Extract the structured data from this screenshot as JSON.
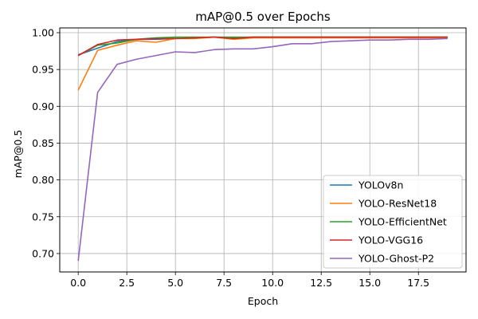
{
  "chart_data": {
    "type": "line",
    "title": "mAP@0.5 over Epochs",
    "xlabel": "Epoch",
    "ylabel": "mAP@0.5",
    "xlim": [
      -0.95,
      19.95
    ],
    "ylim": [
      0.675,
      1.0065
    ],
    "xticks": [
      0.0,
      2.5,
      5.0,
      7.5,
      10.0,
      12.5,
      15.0,
      17.5
    ],
    "xtick_labels": [
      "0.0",
      "2.5",
      "5.0",
      "7.5",
      "10.0",
      "12.5",
      "15.0",
      "17.5"
    ],
    "yticks": [
      0.7,
      0.75,
      0.8,
      0.85,
      0.9,
      0.95,
      1.0
    ],
    "ytick_labels": [
      "0.70",
      "0.75",
      "0.80",
      "0.85",
      "0.90",
      "0.95",
      "1.00"
    ],
    "grid": true,
    "legend_position": "lower-right",
    "x": [
      0,
      1,
      2,
      3,
      4,
      5,
      6,
      7,
      8,
      9,
      10,
      11,
      12,
      13,
      14,
      15,
      16,
      17,
      18,
      19
    ],
    "series": [
      {
        "name": "YOLOv8n",
        "color": "#1f77b4",
        "values": [
          0.97,
          0.979,
          0.988,
          0.991,
          0.991,
          0.992,
          0.993,
          0.994,
          0.993,
          0.994,
          0.994,
          0.994,
          0.994,
          0.994,
          0.994,
          0.994,
          0.994,
          0.994,
          0.994,
          0.994
        ]
      },
      {
        "name": "YOLO-ResNet18",
        "color": "#ff7f0e",
        "values": [
          0.922,
          0.976,
          0.983,
          0.989,
          0.987,
          0.992,
          0.992,
          0.994,
          0.991,
          0.993,
          0.993,
          0.993,
          0.993,
          0.993,
          0.993,
          0.993,
          0.993,
          0.993,
          0.993,
          0.993
        ]
      },
      {
        "name": "YOLO-EfficientNet",
        "color": "#2ca02c",
        "values": [
          0.969,
          0.983,
          0.986,
          0.991,
          0.993,
          0.994,
          0.994,
          0.994,
          0.994,
          0.994,
          0.994,
          0.994,
          0.994,
          0.994,
          0.994,
          0.994,
          0.994,
          0.994,
          0.994,
          0.994
        ]
      },
      {
        "name": "YOLO-VGG16",
        "color": "#d62728",
        "values": [
          0.969,
          0.984,
          0.99,
          0.991,
          0.992,
          0.992,
          0.993,
          0.994,
          0.992,
          0.994,
          0.994,
          0.994,
          0.994,
          0.994,
          0.994,
          0.994,
          0.994,
          0.994,
          0.994,
          0.994
        ]
      },
      {
        "name": "YOLO-Ghost-P2",
        "color": "#9467bd",
        "values": [
          0.69,
          0.919,
          0.957,
          0.964,
          0.969,
          0.974,
          0.973,
          0.977,
          0.978,
          0.978,
          0.981,
          0.985,
          0.985,
          0.988,
          0.989,
          0.99,
          0.99,
          0.991,
          0.991,
          0.992
        ]
      }
    ]
  }
}
